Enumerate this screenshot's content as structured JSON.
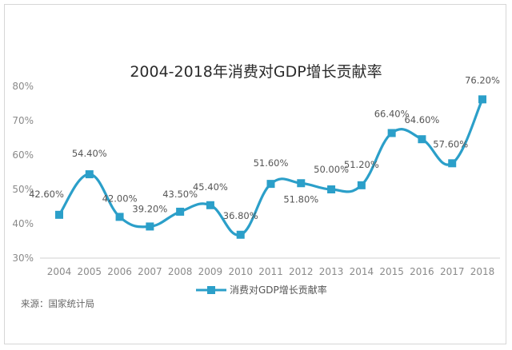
{
  "chart_data": {
    "type": "line",
    "title": "2004-2018年消费对GDP增长贡献率",
    "categories": [
      "2004",
      "2005",
      "2006",
      "2007",
      "2008",
      "2009",
      "2010",
      "2011",
      "2012",
      "2013",
      "2014",
      "2015",
      "2016",
      "2017",
      "2018"
    ],
    "series": [
      {
        "name": "消费对GDP增长贡献率",
        "values": [
          42.6,
          54.4,
          42.0,
          39.2,
          43.5,
          45.4,
          36.8,
          51.6,
          51.8,
          50.0,
          51.2,
          66.4,
          64.6,
          57.6,
          76.2
        ],
        "labels": [
          "42.60%",
          "54.40%",
          "42.00%",
          "39.20%",
          "43.50%",
          "45.40%",
          "36.80%",
          "51.60%",
          "51.80%",
          "50.00%",
          "51.20%",
          "66.40%",
          "64.60%",
          "57.60%",
          "76.20%"
        ],
        "color": "#2b9fc9"
      }
    ],
    "ylim": [
      30,
      80
    ],
    "yticks": [
      "30%",
      "40%",
      "50%",
      "60%",
      "70%",
      "80%"
    ],
    "grid": false,
    "legend_position": "bottom"
  },
  "source": "来源：国家统计局"
}
